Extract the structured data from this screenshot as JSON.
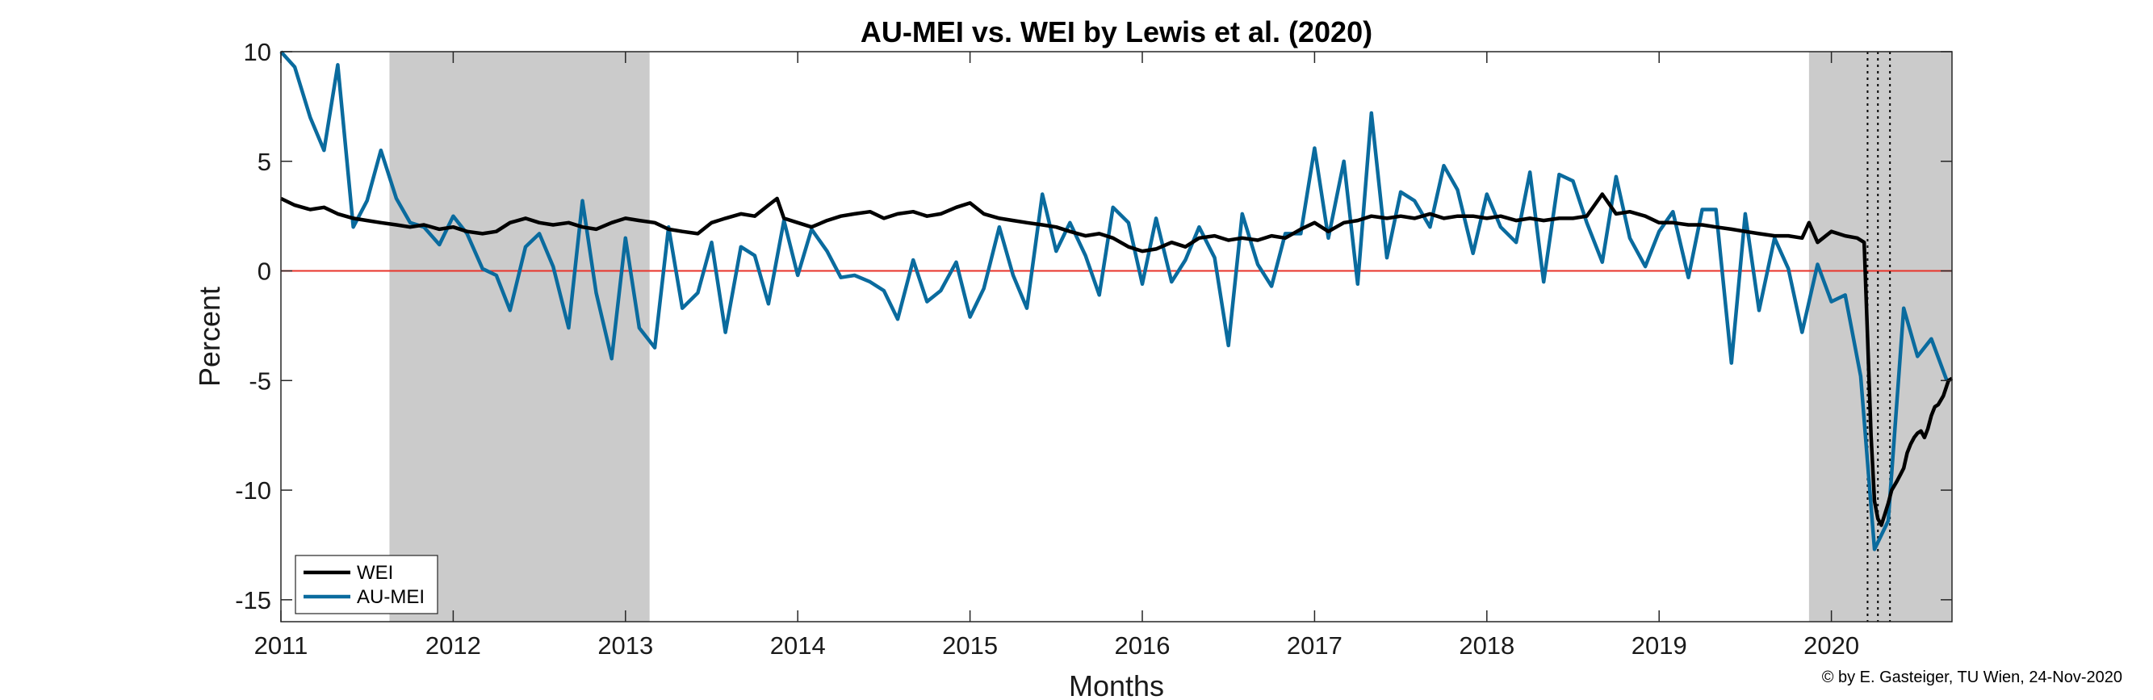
{
  "chart_data": {
    "type": "line",
    "title": "AU-MEI vs. WEI by Lewis et al. (2020)",
    "xlabel": "Months",
    "ylabel": "Percent",
    "xlim": [
      2011.0,
      2020.7
    ],
    "ylim": [
      -16,
      10
    ],
    "x_ticks": [
      "2011",
      "2012",
      "2013",
      "2014",
      "2015",
      "2016",
      "2017",
      "2018",
      "2019",
      "2020"
    ],
    "y_ticks": [
      "10",
      "5",
      "0",
      "-5",
      "-10",
      "-15"
    ],
    "y_tick_values": [
      10,
      5,
      0,
      -5,
      -10,
      -15
    ],
    "shaded_periods": [
      [
        2011.63,
        2013.14
      ],
      [
        2019.87,
        2020.7
      ]
    ],
    "vertical_markers": [
      2020.21,
      2020.27,
      2020.34
    ],
    "reference_line": {
      "value": 0,
      "color": "#e8332a"
    },
    "legend_placement": "bottom-left",
    "grid": false,
    "series": [
      {
        "name": "WEI",
        "color": "#000000",
        "points": [
          [
            2011.0,
            3.3
          ],
          [
            2011.08,
            3.0
          ],
          [
            2011.17,
            2.8
          ],
          [
            2011.25,
            2.9
          ],
          [
            2011.33,
            2.6
          ],
          [
            2011.42,
            2.4
          ],
          [
            2011.5,
            2.3
          ],
          [
            2011.58,
            2.2
          ],
          [
            2011.67,
            2.1
          ],
          [
            2011.75,
            2.0
          ],
          [
            2011.83,
            2.1
          ],
          [
            2011.92,
            1.9
          ],
          [
            2012.0,
            2.0
          ],
          [
            2012.08,
            1.8
          ],
          [
            2012.17,
            1.7
          ],
          [
            2012.25,
            1.8
          ],
          [
            2012.33,
            2.2
          ],
          [
            2012.42,
            2.4
          ],
          [
            2012.5,
            2.2
          ],
          [
            2012.58,
            2.1
          ],
          [
            2012.67,
            2.2
          ],
          [
            2012.75,
            2.0
          ],
          [
            2012.83,
            1.9
          ],
          [
            2012.92,
            2.2
          ],
          [
            2013.0,
            2.4
          ],
          [
            2013.08,
            2.3
          ],
          [
            2013.17,
            2.2
          ],
          [
            2013.25,
            1.9
          ],
          [
            2013.33,
            1.8
          ],
          [
            2013.42,
            1.7
          ],
          [
            2013.5,
            2.2
          ],
          [
            2013.58,
            2.4
          ],
          [
            2013.67,
            2.6
          ],
          [
            2013.75,
            2.5
          ],
          [
            2013.83,
            3.0
          ],
          [
            2013.88,
            3.3
          ],
          [
            2013.92,
            2.4
          ],
          [
            2014.0,
            2.2
          ],
          [
            2014.08,
            2.0
          ],
          [
            2014.17,
            2.3
          ],
          [
            2014.25,
            2.5
          ],
          [
            2014.33,
            2.6
          ],
          [
            2014.42,
            2.7
          ],
          [
            2014.5,
            2.4
          ],
          [
            2014.58,
            2.6
          ],
          [
            2014.67,
            2.7
          ],
          [
            2014.75,
            2.5
          ],
          [
            2014.83,
            2.6
          ],
          [
            2014.92,
            2.9
          ],
          [
            2015.0,
            3.1
          ],
          [
            2015.08,
            2.6
          ],
          [
            2015.17,
            2.4
          ],
          [
            2015.25,
            2.3
          ],
          [
            2015.33,
            2.2
          ],
          [
            2015.42,
            2.1
          ],
          [
            2015.5,
            2.0
          ],
          [
            2015.58,
            1.8
          ],
          [
            2015.67,
            1.6
          ],
          [
            2015.75,
            1.7
          ],
          [
            2015.83,
            1.5
          ],
          [
            2015.92,
            1.1
          ],
          [
            2016.0,
            0.9
          ],
          [
            2016.08,
            1.0
          ],
          [
            2016.17,
            1.3
          ],
          [
            2016.25,
            1.1
          ],
          [
            2016.33,
            1.5
          ],
          [
            2016.42,
            1.6
          ],
          [
            2016.5,
            1.4
          ],
          [
            2016.58,
            1.5
          ],
          [
            2016.67,
            1.4
          ],
          [
            2016.75,
            1.6
          ],
          [
            2016.83,
            1.5
          ],
          [
            2016.92,
            1.9
          ],
          [
            2017.0,
            2.2
          ],
          [
            2017.08,
            1.8
          ],
          [
            2017.17,
            2.2
          ],
          [
            2017.25,
            2.3
          ],
          [
            2017.33,
            2.5
          ],
          [
            2017.42,
            2.4
          ],
          [
            2017.5,
            2.5
          ],
          [
            2017.58,
            2.4
          ],
          [
            2017.67,
            2.6
          ],
          [
            2017.75,
            2.4
          ],
          [
            2017.83,
            2.5
          ],
          [
            2017.92,
            2.5
          ],
          [
            2018.0,
            2.4
          ],
          [
            2018.08,
            2.5
          ],
          [
            2018.17,
            2.3
          ],
          [
            2018.25,
            2.4
          ],
          [
            2018.33,
            2.3
          ],
          [
            2018.42,
            2.4
          ],
          [
            2018.5,
            2.4
          ],
          [
            2018.58,
            2.5
          ],
          [
            2018.67,
            3.5
          ],
          [
            2018.75,
            2.6
          ],
          [
            2018.83,
            2.7
          ],
          [
            2018.92,
            2.5
          ],
          [
            2019.0,
            2.2
          ],
          [
            2019.08,
            2.2
          ],
          [
            2019.17,
            2.1
          ],
          [
            2019.25,
            2.1
          ],
          [
            2019.33,
            2.0
          ],
          [
            2019.42,
            1.9
          ],
          [
            2019.5,
            1.8
          ],
          [
            2019.58,
            1.7
          ],
          [
            2019.67,
            1.6
          ],
          [
            2019.75,
            1.6
          ],
          [
            2019.83,
            1.5
          ],
          [
            2019.87,
            2.2
          ],
          [
            2019.92,
            1.3
          ],
          [
            2020.0,
            1.8
          ],
          [
            2020.08,
            1.6
          ],
          [
            2020.15,
            1.5
          ],
          [
            2020.19,
            1.3
          ],
          [
            2020.21,
            -3.0
          ],
          [
            2020.23,
            -7.5
          ],
          [
            2020.25,
            -10.5
          ],
          [
            2020.27,
            -11.3
          ],
          [
            2020.29,
            -11.6
          ],
          [
            2020.31,
            -11.1
          ],
          [
            2020.33,
            -10.6
          ],
          [
            2020.35,
            -10.0
          ],
          [
            2020.38,
            -9.6
          ],
          [
            2020.4,
            -9.3
          ],
          [
            2020.42,
            -9.0
          ],
          [
            2020.44,
            -8.3
          ],
          [
            2020.46,
            -7.9
          ],
          [
            2020.48,
            -7.6
          ],
          [
            2020.5,
            -7.4
          ],
          [
            2020.52,
            -7.3
          ],
          [
            2020.54,
            -7.6
          ],
          [
            2020.56,
            -7.2
          ],
          [
            2020.58,
            -6.6
          ],
          [
            2020.6,
            -6.2
          ],
          [
            2020.62,
            -6.1
          ],
          [
            2020.65,
            -5.7
          ],
          [
            2020.68,
            -5.0
          ],
          [
            2020.7,
            -4.9
          ]
        ]
      },
      {
        "name": "AU-MEI",
        "color": "#0a6b9e",
        "points": [
          [
            2011.0,
            10.0
          ],
          [
            2011.08,
            9.3
          ],
          [
            2011.17,
            7.0
          ],
          [
            2011.25,
            5.5
          ],
          [
            2011.33,
            9.4
          ],
          [
            2011.42,
            2.0
          ],
          [
            2011.5,
            3.2
          ],
          [
            2011.58,
            5.5
          ],
          [
            2011.67,
            3.3
          ],
          [
            2011.75,
            2.2
          ],
          [
            2011.83,
            2.0
          ],
          [
            2011.92,
            1.2
          ],
          [
            2012.0,
            2.5
          ],
          [
            2012.08,
            1.7
          ],
          [
            2012.17,
            0.1
          ],
          [
            2012.25,
            -0.2
          ],
          [
            2012.33,
            -1.8
          ],
          [
            2012.42,
            1.1
          ],
          [
            2012.5,
            1.7
          ],
          [
            2012.58,
            0.2
          ],
          [
            2012.67,
            -2.6
          ],
          [
            2012.75,
            3.2
          ],
          [
            2012.83,
            -1.0
          ],
          [
            2012.92,
            -4.0
          ],
          [
            2013.0,
            1.5
          ],
          [
            2013.08,
            -2.6
          ],
          [
            2013.17,
            -3.5
          ],
          [
            2013.25,
            2.0
          ],
          [
            2013.33,
            -1.7
          ],
          [
            2013.42,
            -1.0
          ],
          [
            2013.5,
            1.3
          ],
          [
            2013.58,
            -2.8
          ],
          [
            2013.67,
            1.1
          ],
          [
            2013.75,
            0.7
          ],
          [
            2013.83,
            -1.5
          ],
          [
            2013.92,
            2.3
          ],
          [
            2014.0,
            -0.2
          ],
          [
            2014.08,
            1.9
          ],
          [
            2014.17,
            0.9
          ],
          [
            2014.25,
            -0.3
          ],
          [
            2014.33,
            -0.2
          ],
          [
            2014.42,
            -0.5
          ],
          [
            2014.5,
            -0.9
          ],
          [
            2014.58,
            -2.2
          ],
          [
            2014.67,
            0.5
          ],
          [
            2014.75,
            -1.4
          ],
          [
            2014.83,
            -0.9
          ],
          [
            2014.92,
            0.4
          ],
          [
            2015.0,
            -2.1
          ],
          [
            2015.08,
            -0.8
          ],
          [
            2015.17,
            2.0
          ],
          [
            2015.25,
            -0.2
          ],
          [
            2015.33,
            -1.7
          ],
          [
            2015.42,
            3.5
          ],
          [
            2015.5,
            0.9
          ],
          [
            2015.58,
            2.2
          ],
          [
            2015.67,
            0.7
          ],
          [
            2015.75,
            -1.1
          ],
          [
            2015.83,
            2.9
          ],
          [
            2015.92,
            2.2
          ],
          [
            2016.0,
            -0.6
          ],
          [
            2016.08,
            2.4
          ],
          [
            2016.17,
            -0.5
          ],
          [
            2016.25,
            0.5
          ],
          [
            2016.33,
            2.0
          ],
          [
            2016.42,
            0.6
          ],
          [
            2016.5,
            -3.4
          ],
          [
            2016.58,
            2.6
          ],
          [
            2016.67,
            0.3
          ],
          [
            2016.75,
            -0.7
          ],
          [
            2016.83,
            1.7
          ],
          [
            2016.92,
            1.7
          ],
          [
            2017.0,
            5.6
          ],
          [
            2017.08,
            1.5
          ],
          [
            2017.17,
            5.0
          ],
          [
            2017.25,
            -0.6
          ],
          [
            2017.33,
            7.2
          ],
          [
            2017.42,
            0.6
          ],
          [
            2017.5,
            3.6
          ],
          [
            2017.58,
            3.2
          ],
          [
            2017.67,
            2.0
          ],
          [
            2017.75,
            4.8
          ],
          [
            2017.83,
            3.7
          ],
          [
            2017.92,
            0.8
          ],
          [
            2018.0,
            3.5
          ],
          [
            2018.08,
            2.0
          ],
          [
            2018.17,
            1.3
          ],
          [
            2018.25,
            4.5
          ],
          [
            2018.33,
            -0.5
          ],
          [
            2018.42,
            4.4
          ],
          [
            2018.5,
            4.1
          ],
          [
            2018.58,
            2.2
          ],
          [
            2018.67,
            0.4
          ],
          [
            2018.75,
            4.3
          ],
          [
            2018.83,
            1.5
          ],
          [
            2018.92,
            0.2
          ],
          [
            2019.0,
            1.8
          ],
          [
            2019.08,
            2.7
          ],
          [
            2019.17,
            -0.3
          ],
          [
            2019.25,
            2.8
          ],
          [
            2019.33,
            2.8
          ],
          [
            2019.42,
            -4.2
          ],
          [
            2019.5,
            2.6
          ],
          [
            2019.58,
            -1.8
          ],
          [
            2019.67,
            1.5
          ],
          [
            2019.75,
            0.1
          ],
          [
            2019.83,
            -2.8
          ],
          [
            2019.92,
            0.3
          ],
          [
            2020.0,
            -1.4
          ],
          [
            2020.08,
            -1.1
          ],
          [
            2020.17,
            -4.8
          ],
          [
            2020.25,
            -12.7
          ],
          [
            2020.33,
            -11.4
          ],
          [
            2020.42,
            -1.7
          ],
          [
            2020.5,
            -3.9
          ],
          [
            2020.58,
            -3.1
          ],
          [
            2020.67,
            -5.0
          ]
        ]
      }
    ]
  },
  "credit_text": "© by E. Gasteiger, TU Wien, 24-Nov-2020"
}
